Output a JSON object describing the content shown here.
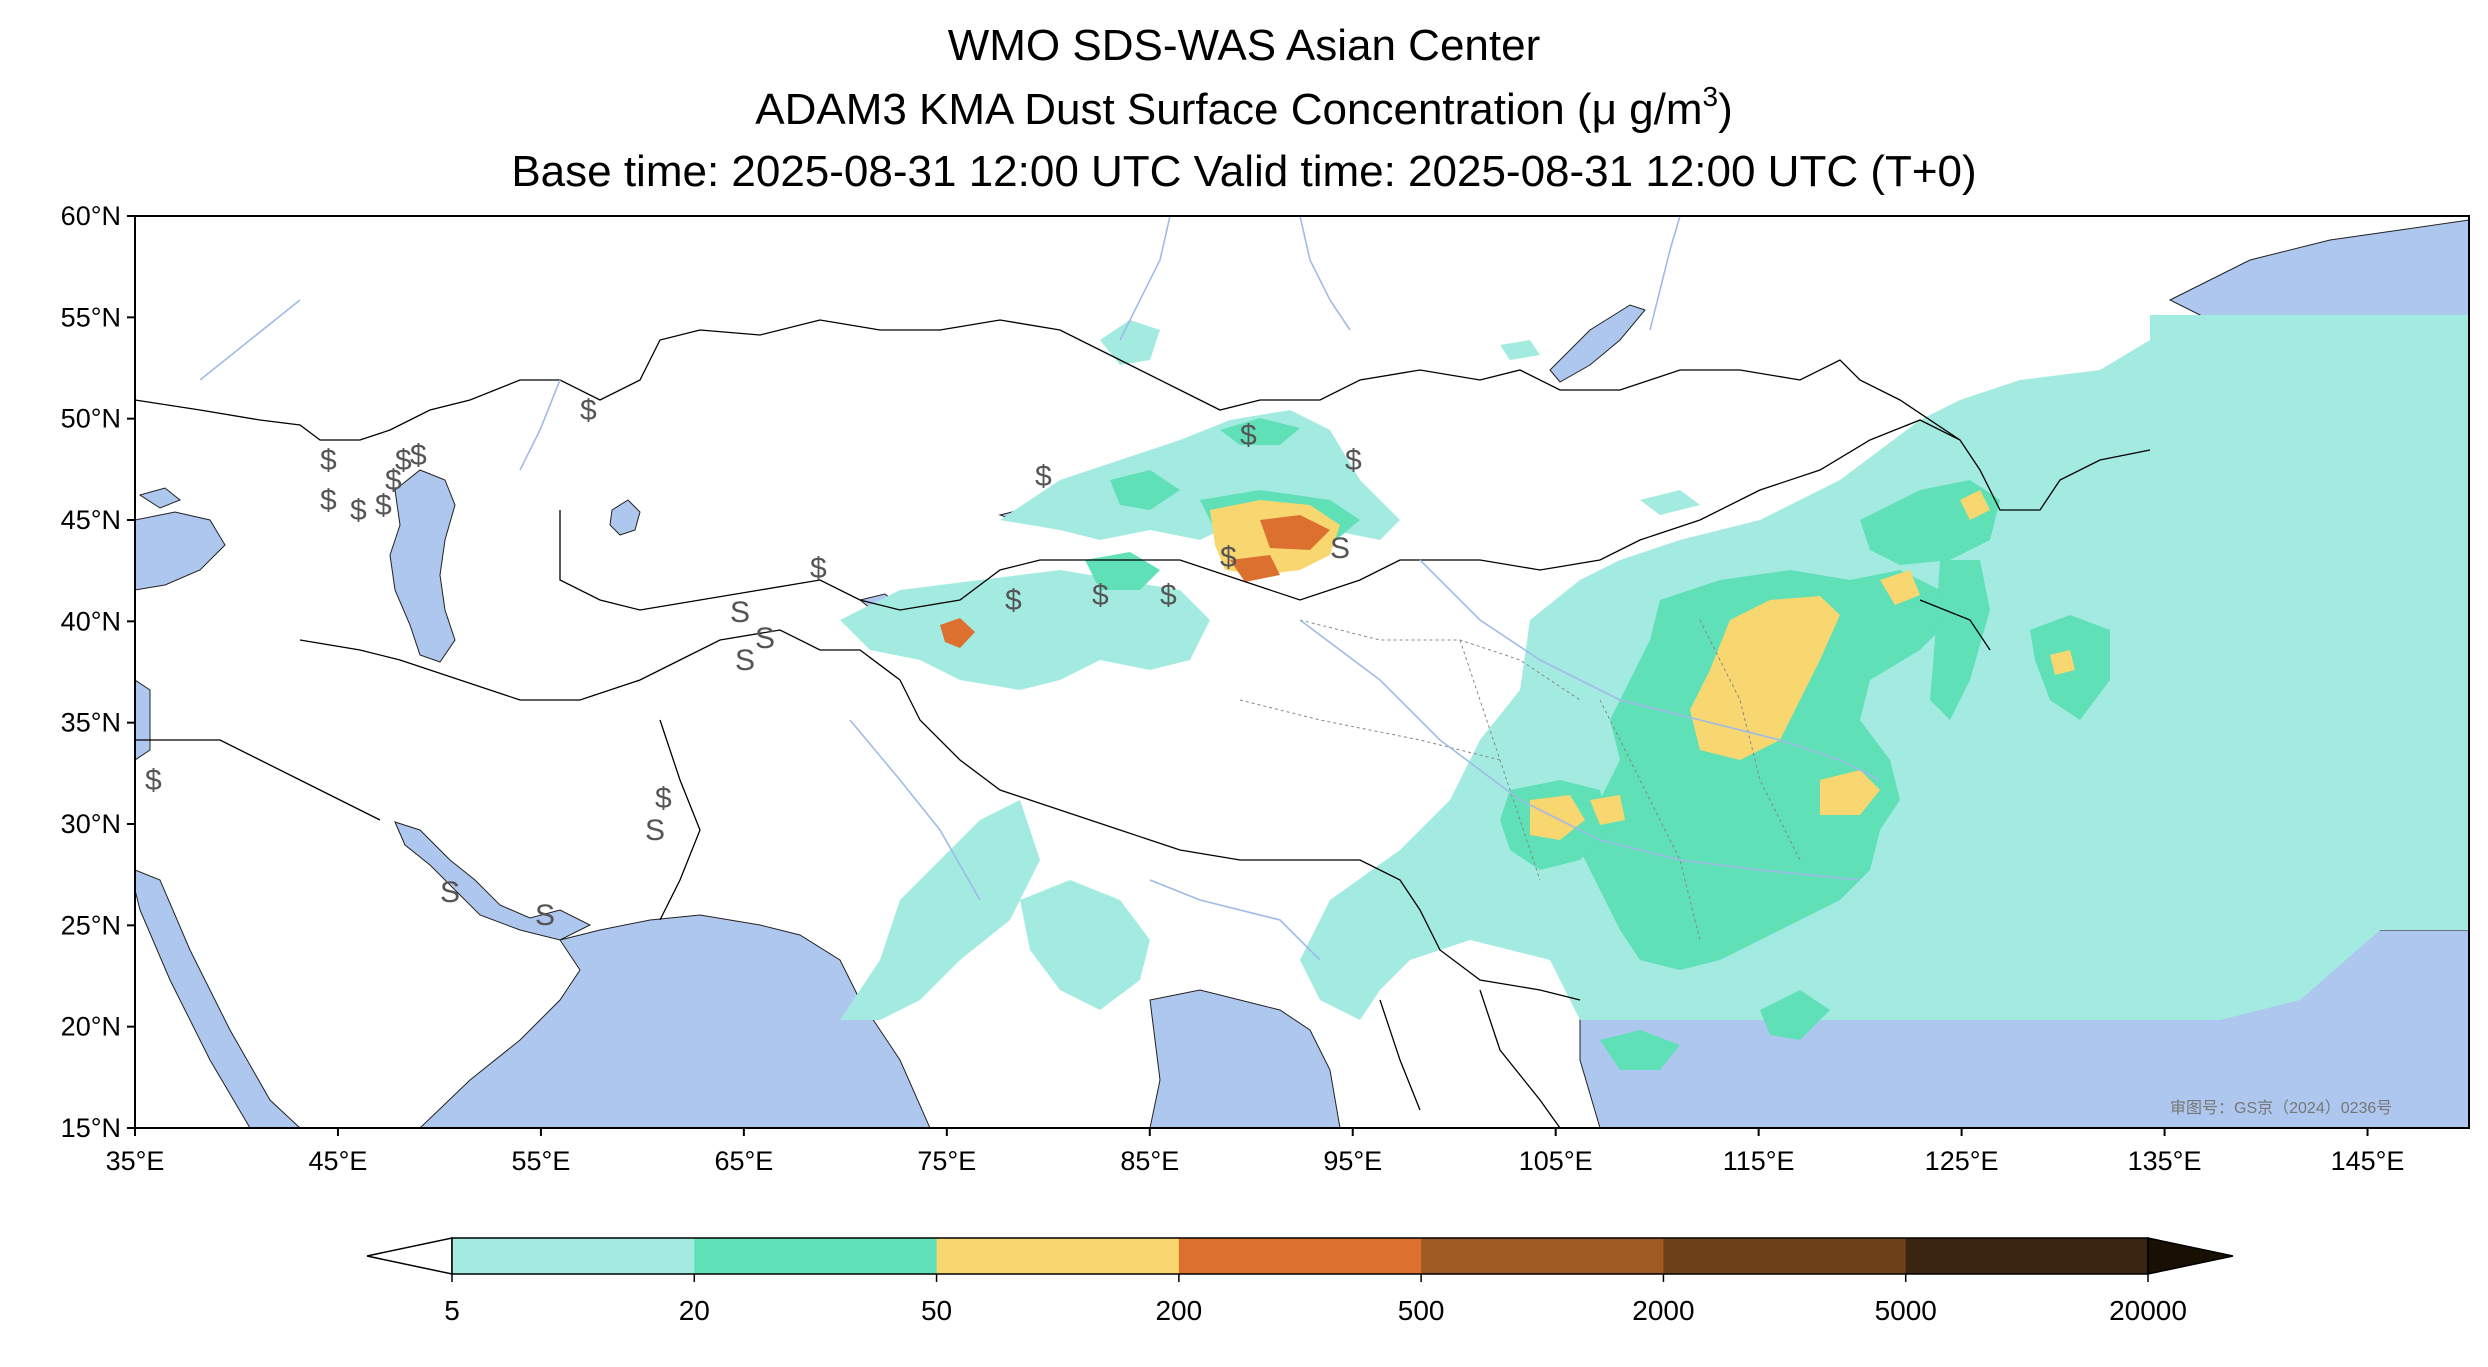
{
  "title": {
    "line1": "WMO SDS-WAS Asian Center",
    "line2_prefix": "ADAM3 KMA Dust Surface Concentration (",
    "line2_unit_mu": "μ",
    "line2_unit_base": " g/m",
    "line2_unit_exp": "3",
    "line2_suffix": ")",
    "line3": "Base time: 2025-08-31 12:00 UTC Valid time: 2025-08-31 12:00 UTC (T+0)"
  },
  "map": {
    "lon_range": [
      35,
      150
    ],
    "lat_range": [
      15,
      60
    ],
    "lat_ticks": [
      "60°N",
      "55°N",
      "50°N",
      "45°N",
      "40°N",
      "35°N",
      "30°N",
      "25°N",
      "20°N",
      "15°N"
    ],
    "lon_ticks": [
      "35°E",
      "45°E",
      "55°E",
      "65°E",
      "75°E",
      "85°E",
      "95°E",
      "105°E",
      "115°E",
      "125°E",
      "135°E",
      "145°E"
    ],
    "ocean_color": "#aec7ee",
    "land_color": "#ffffff",
    "map_notice": "审图号：GS京（2024）0236号"
  },
  "colorbar": {
    "tick_labels": [
      "5",
      "20",
      "50",
      "200",
      "500",
      "2000",
      "5000",
      "20000"
    ],
    "colors": [
      "#a3ebe0",
      "#5fe0b7",
      "#f8d670",
      "#dc702f",
      "#9e5a22",
      "#6c411a",
      "#3a2412"
    ],
    "under_color": "#ffffff",
    "over_color": "#1a0f05"
  }
}
